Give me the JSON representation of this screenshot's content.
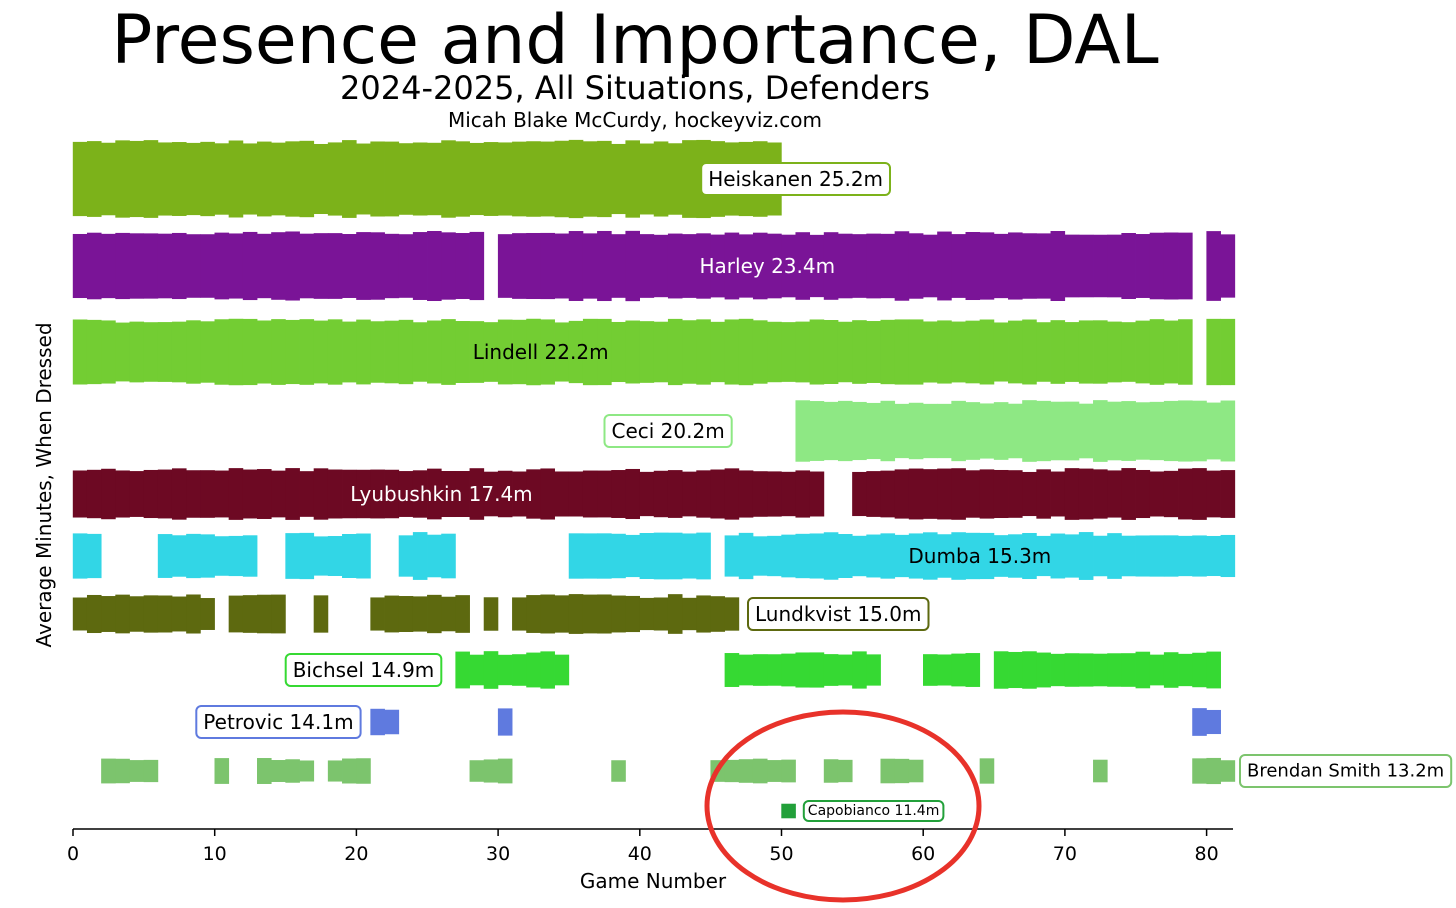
{
  "header": {
    "title": "Presence and Importance, DAL",
    "subtitle": "2024-2025, All Situations, Defenders",
    "credit": "Micah Blake McCurdy, hockeyviz.com"
  },
  "colors": {
    "annotation_circle": "#e8322a",
    "axis": "#000000"
  },
  "chart_data": {
    "type": "area",
    "title": "Presence and Importance, DAL",
    "subtitle": "2024-2025, All Situations, Defenders",
    "xlabel": "Game Number",
    "ylabel": "Average Minutes, When Dressed",
    "xlim": [
      0,
      82
    ],
    "xticks": [
      0,
      10,
      20,
      30,
      40,
      50,
      60,
      70,
      80
    ],
    "grid": false,
    "annotation": "red circle around Capobianco 11.4m, games ~45-64",
    "series": [
      {
        "name": "Heiskanen",
        "label": "Heiskanen 25.2m",
        "color": "#7cb21a",
        "text_color": "#000000",
        "label_boxed": true,
        "label_game": 51,
        "games": [
          [
            1,
            50
          ]
        ],
        "thickness": [
          0.92,
          1.03
        ]
      },
      {
        "name": "Harley",
        "label": "Harley 23.4m",
        "color": "#7a1497",
        "text_color": "#ffffff",
        "label_boxed": false,
        "label_game": 49,
        "games": [
          [
            1,
            29
          ],
          [
            31,
            79
          ],
          [
            81,
            82
          ]
        ],
        "thickness": [
          0.84,
          0.95
        ]
      },
      {
        "name": "Lindell",
        "label": "Lindell 22.2m",
        "color": "#73cd33",
        "text_color": "#000000",
        "label_boxed": false,
        "label_game": 33,
        "games": [
          [
            1,
            79
          ],
          [
            81,
            82
          ]
        ],
        "thickness": [
          0.84,
          0.95
        ]
      },
      {
        "name": "Ceci",
        "label": "Ceci 20.2m",
        "color": "#8ee884",
        "text_color": "#000000",
        "label_boxed": true,
        "label_game": 42,
        "games": [
          [
            52,
            82
          ]
        ],
        "thickness": [
          0.82,
          0.95
        ]
      },
      {
        "name": "Lyubushkin",
        "label": "Lyubushkin 17.4m",
        "color": "#6d0923",
        "text_color": "#ffffff",
        "label_boxed": false,
        "label_game": 26,
        "games": [
          [
            1,
            38
          ],
          [
            39,
            53
          ],
          [
            56,
            82
          ]
        ],
        "thickness": [
          0.76,
          0.9
        ]
      },
      {
        "name": "Dumba",
        "label": "Dumba 15.3m",
        "color": "#32d6e6",
        "text_color": "#000000",
        "label_boxed": false,
        "label_game": 64,
        "games": [
          [
            1,
            2
          ],
          [
            7,
            13
          ],
          [
            16,
            21
          ],
          [
            24,
            27
          ],
          [
            36,
            38
          ],
          [
            39,
            45
          ],
          [
            47,
            82
          ]
        ],
        "thickness": [
          0.7,
          0.86
        ]
      },
      {
        "name": "Lundkvist",
        "label": "Lundkvist 15.0m",
        "color": "#5d690f",
        "text_color": "#000000",
        "label_boxed": true,
        "label_game": 54,
        "games": [
          [
            1,
            10
          ],
          [
            12,
            15
          ],
          [
            18,
            18
          ],
          [
            22,
            28
          ],
          [
            30,
            30
          ],
          [
            32,
            47
          ]
        ],
        "thickness": [
          0.66,
          0.84
        ]
      },
      {
        "name": "Bichsel",
        "label": "Bichsel 14.9m",
        "color": "#36d933",
        "text_color": "#000000",
        "label_boxed": true,
        "label_game": 20.5,
        "games": [
          [
            28,
            35
          ],
          [
            47,
            57
          ],
          [
            61,
            64
          ],
          [
            66,
            81
          ]
        ],
        "thickness": [
          0.66,
          0.82
        ]
      },
      {
        "name": "Petrovic",
        "label": "Petrovic 14.1m",
        "color": "#5f7adf",
        "text_color": "#000000",
        "label_boxed": true,
        "label_game": 14.5,
        "games": [
          [
            22,
            23
          ],
          [
            31,
            31
          ],
          [
            80,
            81
          ]
        ],
        "thickness": [
          0.6,
          0.78
        ]
      },
      {
        "name": "Brendan Smith",
        "label": "Brendan Smith 13.2m",
        "color": "#7cc46d",
        "text_color": "#000000",
        "label_boxed": true,
        "label_game": 90,
        "games": [
          [
            3,
            6
          ],
          [
            11,
            11
          ],
          [
            14,
            17
          ],
          [
            19,
            21
          ],
          [
            29,
            31
          ],
          [
            39,
            39
          ],
          [
            46,
            51
          ],
          [
            54,
            55
          ],
          [
            58,
            60
          ],
          [
            65,
            65
          ],
          [
            73,
            73
          ],
          [
            80,
            82
          ]
        ],
        "thickness": [
          0.52,
          0.66
        ]
      },
      {
        "name": "Capobianco",
        "label": "Capobianco 11.4m",
        "color": "#22a03a",
        "text_color": "#000000",
        "label_boxed": true,
        "label_game": 56.5,
        "games": [
          [
            51,
            51
          ]
        ],
        "thickness": [
          0.45,
          0.5
        ]
      }
    ]
  }
}
